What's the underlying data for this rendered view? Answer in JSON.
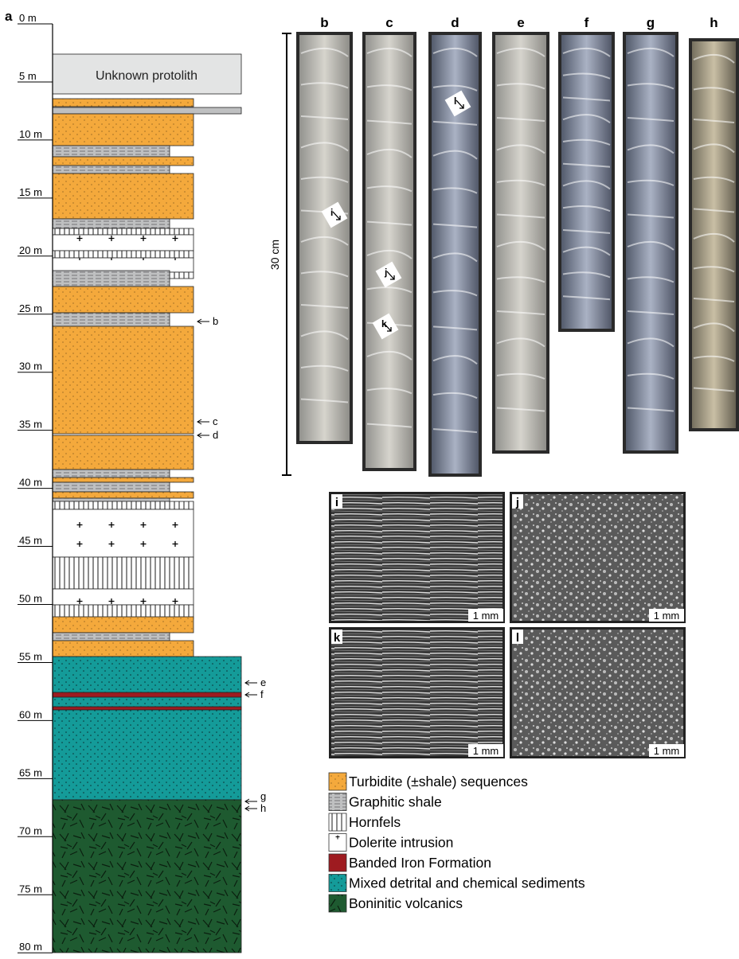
{
  "figure_label": "a",
  "depth_labels": [
    "0 m",
    "5 m",
    "10 m",
    "15 m",
    "20 m",
    "25 m",
    "30 m",
    "35 m",
    "40 m",
    "45 m",
    "50 m",
    "55 m",
    "60 m",
    "65 m",
    "70 m",
    "75 m",
    "80 m"
  ],
  "protolith_label": "Unknown protolith",
  "sample_markers": [
    "b",
    "c",
    "d",
    "e",
    "f",
    "g",
    "h"
  ],
  "core_panels": {
    "labels": [
      "b",
      "c",
      "d",
      "e",
      "f",
      "g",
      "h"
    ],
    "scale_label": "30 cm",
    "arrow_labels": [
      "i",
      "j",
      "k",
      "l"
    ]
  },
  "thin_sections": [
    {
      "label": "i",
      "scale": "1 mm"
    },
    {
      "label": "j",
      "scale": "1 mm"
    },
    {
      "label": "k",
      "scale": "1 mm"
    },
    {
      "label": "l",
      "scale": "1 mm"
    }
  ],
  "legend": [
    "Turbidite (±shale) sequences",
    "Graphitic shale",
    "Hornfels",
    "Dolerite intrusion",
    "Banded Iron Formation",
    "Mixed detrital and chemical sediments",
    "Boninitic volcanics"
  ]
}
